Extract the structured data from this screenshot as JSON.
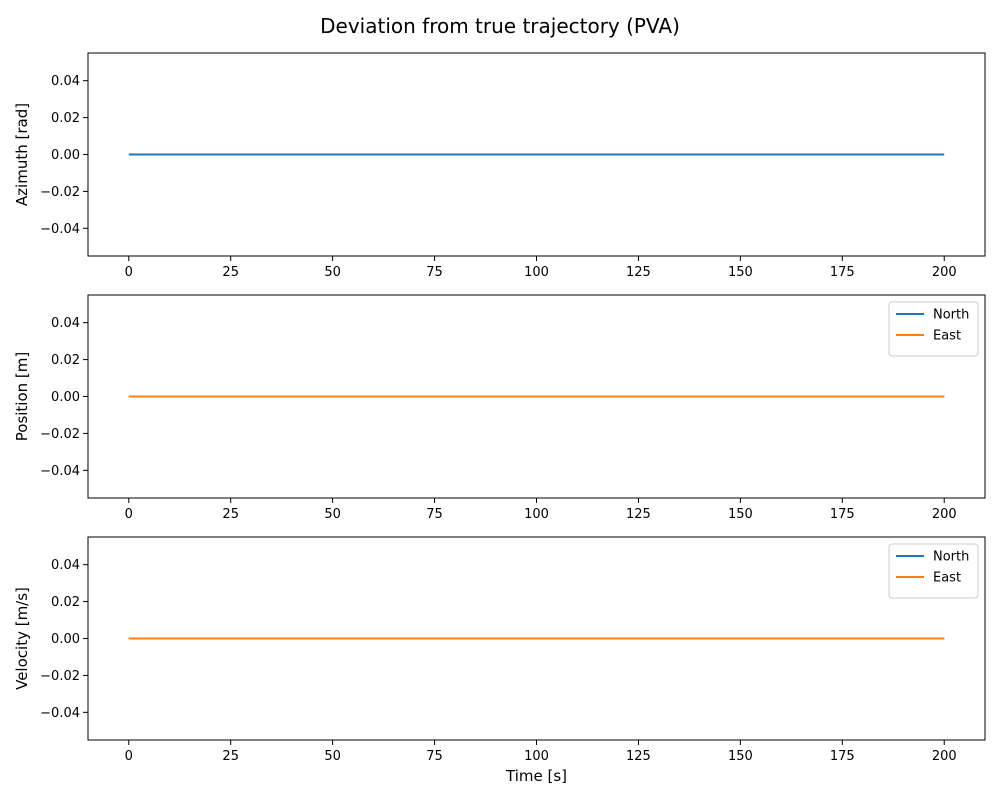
{
  "title": "Deviation from true trajectory (PVA)",
  "chart_data": [
    {
      "type": "line",
      "title": "",
      "xlabel": "",
      "ylabel": "Azimuth [rad]",
      "xlim": [
        -10,
        210
      ],
      "ylim": [
        -0.055,
        0.055
      ],
      "xticks": [
        0,
        25,
        50,
        75,
        100,
        125,
        150,
        175,
        200
      ],
      "yticks": [
        -0.04,
        -0.02,
        0.0,
        0.02,
        0.04
      ],
      "ytick_labels": [
        "−0.04",
        "−0.02",
        "0.00",
        "0.02",
        "0.04"
      ],
      "grid": false,
      "legend": null,
      "series": [
        {
          "name": "",
          "color": "#1f77b4",
          "x": [
            0,
            200
          ],
          "y": [
            0,
            0
          ]
        }
      ]
    },
    {
      "type": "line",
      "title": "",
      "xlabel": "",
      "ylabel": "Position [m]",
      "xlim": [
        -10,
        210
      ],
      "ylim": [
        -0.055,
        0.055
      ],
      "xticks": [
        0,
        25,
        50,
        75,
        100,
        125,
        150,
        175,
        200
      ],
      "yticks": [
        -0.04,
        -0.02,
        0.0,
        0.02,
        0.04
      ],
      "ytick_labels": [
        "−0.04",
        "−0.02",
        "0.00",
        "0.02",
        "0.04"
      ],
      "grid": false,
      "legend": "top-right",
      "series": [
        {
          "name": "North",
          "color": "#1f77b4",
          "x": [
            0,
            200
          ],
          "y": [
            0,
            0
          ]
        },
        {
          "name": "East",
          "color": "#ff7f0e",
          "x": [
            0,
            200
          ],
          "y": [
            0,
            0
          ]
        }
      ]
    },
    {
      "type": "line",
      "title": "",
      "xlabel": "Time [s]",
      "ylabel": "Velocity [m/s]",
      "xlim": [
        -10,
        210
      ],
      "ylim": [
        -0.055,
        0.055
      ],
      "xticks": [
        0,
        25,
        50,
        75,
        100,
        125,
        150,
        175,
        200
      ],
      "yticks": [
        -0.04,
        -0.02,
        0.0,
        0.02,
        0.04
      ],
      "ytick_labels": [
        "−0.04",
        "−0.02",
        "0.00",
        "0.02",
        "0.04"
      ],
      "grid": false,
      "legend": "top-right",
      "series": [
        {
          "name": "North",
          "color": "#1f77b4",
          "x": [
            0,
            200
          ],
          "y": [
            0,
            0
          ]
        },
        {
          "name": "East",
          "color": "#ff7f0e",
          "x": [
            0,
            200
          ],
          "y": [
            0,
            0
          ]
        }
      ]
    }
  ]
}
